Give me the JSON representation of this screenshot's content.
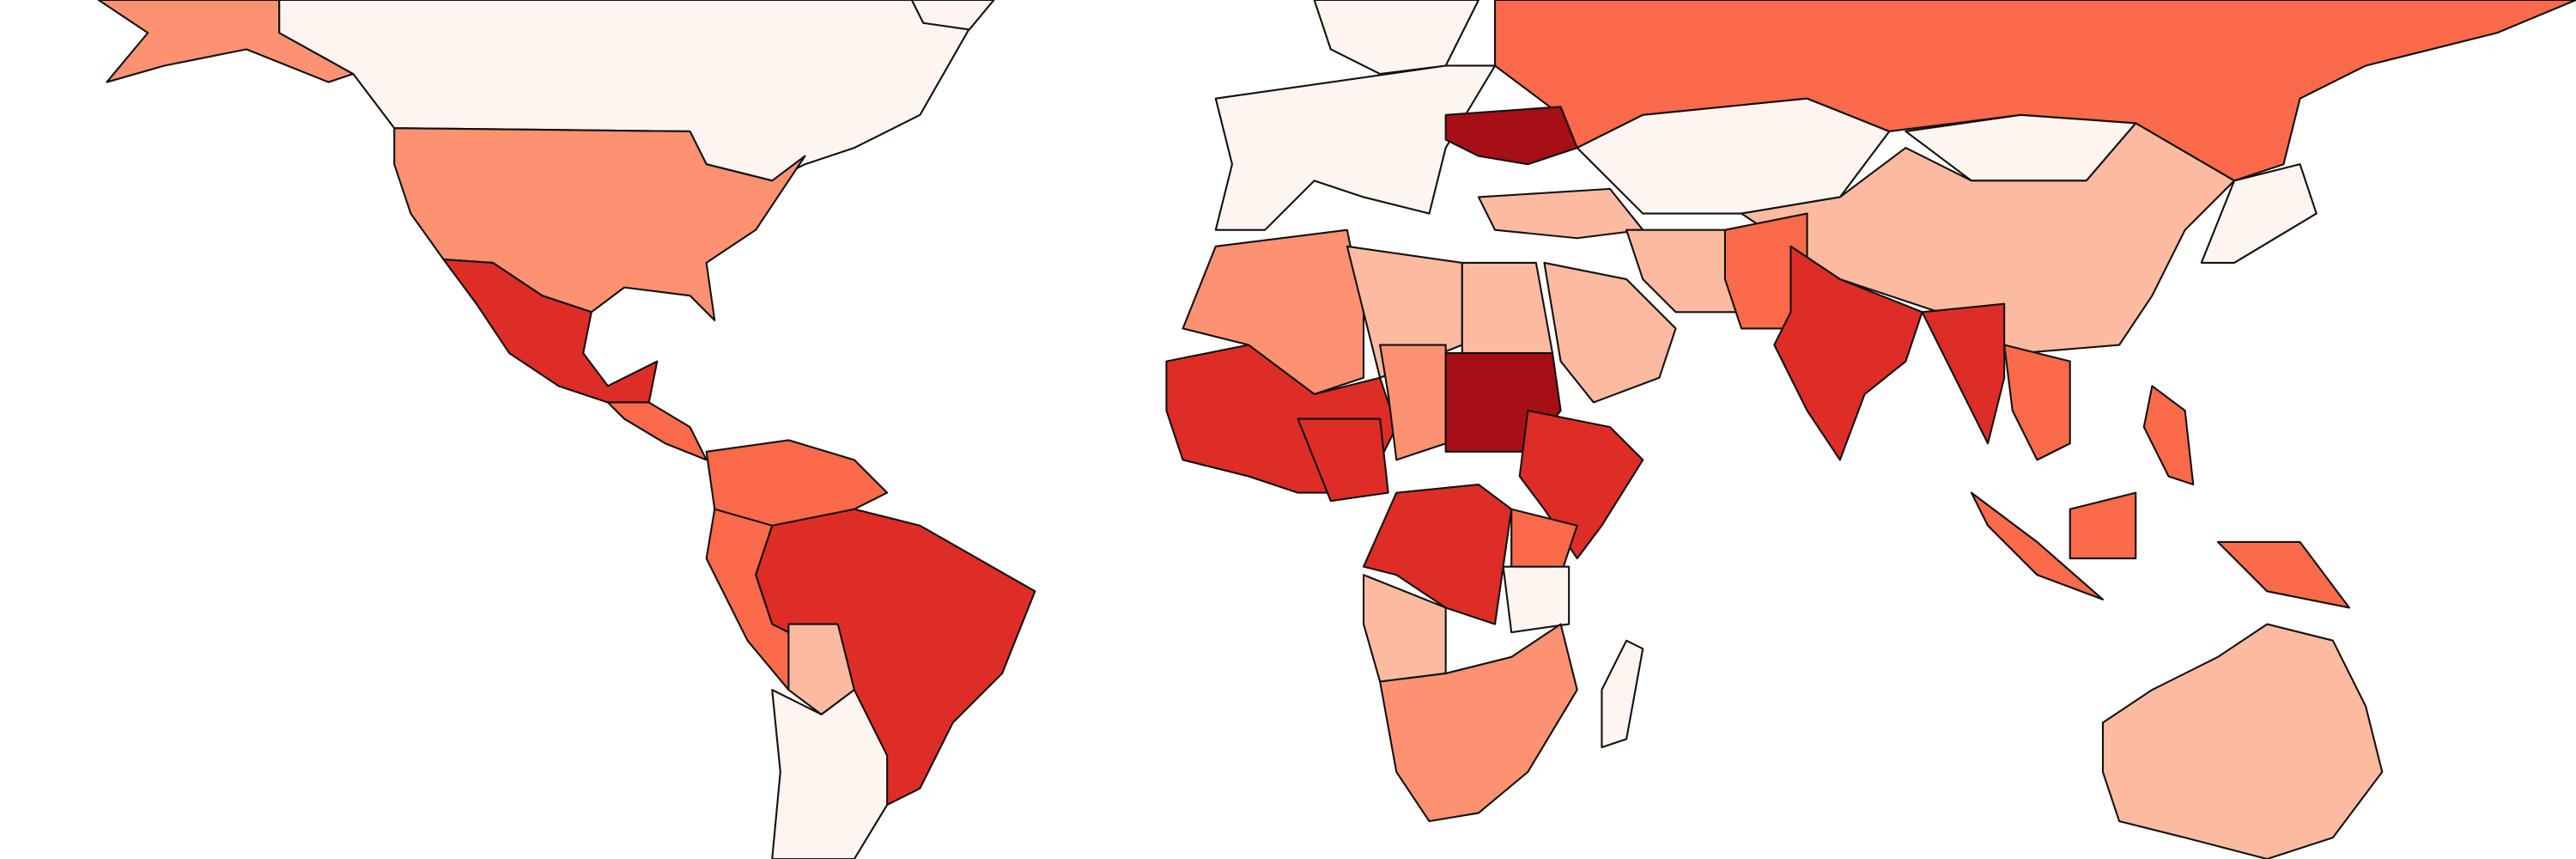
{
  "map": {
    "palette": [
      "#fff5f0",
      "#fcbba1",
      "#fc9272",
      "#fb6a4a",
      "#de2d26",
      "#a50f15"
    ]
  }
}
